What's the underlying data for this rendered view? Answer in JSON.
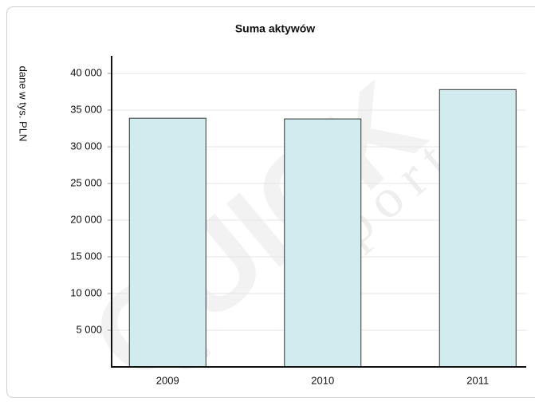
{
  "chart_data": {
    "type": "bar",
    "title": "Suma aktywów",
    "y_label": "dane w tys. PLN",
    "categories": [
      "2009",
      "2010",
      "2011"
    ],
    "values": [
      33900,
      33800,
      37800
    ],
    "color": "#d1ebee",
    "ylim": [
      0,
      42400
    ],
    "yticks": [
      {
        "value": 5000,
        "label": "5 000"
      },
      {
        "value": 10000,
        "label": "10 000"
      },
      {
        "value": 15000,
        "label": "15 000"
      },
      {
        "value": 20000,
        "label": "20 000"
      },
      {
        "value": 25000,
        "label": "25 000"
      },
      {
        "value": 30000,
        "label": "30 000"
      },
      {
        "value": 35000,
        "label": "35 000"
      },
      {
        "value": 40000,
        "label": "40 000"
      }
    ],
    "grid": true,
    "annotations": [
      "QUICK",
      "report"
    ]
  }
}
